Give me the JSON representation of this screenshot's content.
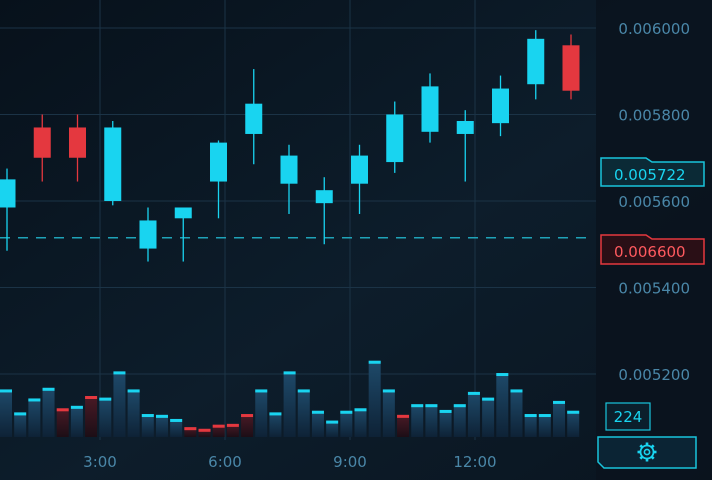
{
  "colors": {
    "background": "#0b1622",
    "panel": "#0a121c",
    "grid": "#1b3346",
    "bull": "#19d4f0",
    "bear": "#e4383f",
    "vol_bull": "#1b3a55",
    "vol_bull_cap": "#19d4f0",
    "vol_bear": "#3a1520",
    "vol_bear_cap": "#e4383f",
    "axis_text": "#4a87a8",
    "dashed_line": "#1fa3b8",
    "current_tag_border": "#19c4dc",
    "current_tag_text": "#19d4f0",
    "alert_tag_border": "#e4383f",
    "alert_tag_text": "#ff5a5f"
  },
  "price_axis": {
    "labels": [
      "0.006000",
      "0.005800",
      "0.005600",
      "0.005400",
      "0.005200"
    ],
    "values": [
      0.006,
      0.0058,
      0.0056,
      0.0054,
      0.0052
    ]
  },
  "time_axis": {
    "labels": [
      "3:00",
      "6:00",
      "9:00",
      "12:00"
    ],
    "values": [
      3,
      6,
      9,
      12
    ]
  },
  "current_price": {
    "label": "0.005722"
  },
  "alert_price": {
    "label": "0.006600"
  },
  "volume_badge": {
    "label": "224"
  },
  "settings_button": {
    "icon": "gear-icon"
  },
  "chart_data": {
    "type": "candlestick",
    "ylim": [
      0.00505,
      0.00607
    ],
    "xlim": [
      0.15,
      14.45
    ],
    "dashed_level": 0.005515,
    "candles": [
      {
        "t": 0.15,
        "open": 0.005585,
        "close": 0.00565,
        "high": 0.005675,
        "low": 0.005485
      },
      {
        "t": 1.0,
        "open": 0.00577,
        "close": 0.0057,
        "high": 0.0058,
        "low": 0.005645
      },
      {
        "t": 1.85,
        "open": 0.00577,
        "close": 0.0057,
        "high": 0.0058,
        "low": 0.005645
      },
      {
        "t": 2.7,
        "open": 0.0056,
        "close": 0.00577,
        "high": 0.005785,
        "low": 0.00559
      },
      {
        "t": 3.55,
        "open": 0.00549,
        "close": 0.005555,
        "high": 0.005585,
        "low": 0.00546
      },
      {
        "t": 4.4,
        "open": 0.00556,
        "close": 0.005585,
        "high": 0.005585,
        "low": 0.00546
      },
      {
        "t": 5.25,
        "open": 0.005645,
        "close": 0.005735,
        "high": 0.00574,
        "low": 0.00556
      },
      {
        "t": 6.1,
        "open": 0.005755,
        "close": 0.005825,
        "high": 0.005905,
        "low": 0.005685
      },
      {
        "t": 6.95,
        "open": 0.00564,
        "close": 0.005705,
        "high": 0.00573,
        "low": 0.00557
      },
      {
        "t": 7.8,
        "open": 0.005595,
        "close": 0.005625,
        "high": 0.005655,
        "low": 0.0055
      },
      {
        "t": 8.65,
        "open": 0.00564,
        "close": 0.005705,
        "high": 0.00573,
        "low": 0.00557
      },
      {
        "t": 9.5,
        "open": 0.00569,
        "close": 0.0058,
        "high": 0.00583,
        "low": 0.005665
      },
      {
        "t": 10.35,
        "open": 0.00576,
        "close": 0.005865,
        "high": 0.005895,
        "low": 0.005735
      },
      {
        "t": 11.2,
        "open": 0.005755,
        "close": 0.005785,
        "high": 0.00581,
        "low": 0.005645
      },
      {
        "t": 12.05,
        "open": 0.00578,
        "close": 0.00586,
        "high": 0.00589,
        "low": 0.00575
      },
      {
        "t": 12.9,
        "open": 0.00587,
        "close": 0.005975,
        "high": 0.005995,
        "low": 0.005835
      },
      {
        "t": 13.75,
        "open": 0.00596,
        "close": 0.005855,
        "high": 0.005985,
        "low": 0.005835
      }
    ],
    "volume": {
      "ylim": [
        0,
        100
      ],
      "bars": [
        {
          "t": 0.15,
          "v": 58,
          "dir": "bull"
        },
        {
          "t": 0.5,
          "v": 30,
          "dir": "bull"
        },
        {
          "t": 0.85,
          "v": 47,
          "dir": "bull"
        },
        {
          "t": 1.15,
          "v": 60,
          "dir": "bull"
        },
        {
          "t": 1.5,
          "v": 35,
          "dir": "bear"
        },
        {
          "t": 1.85,
          "v": 38,
          "dir": "bull"
        },
        {
          "t": 2.15,
          "v": 50,
          "dir": "bear"
        },
        {
          "t": 2.5,
          "v": 48,
          "dir": "bull"
        },
        {
          "t": 2.85,
          "v": 80,
          "dir": "bull"
        },
        {
          "t": 3.15,
          "v": 58,
          "dir": "bull"
        },
        {
          "t": 3.5,
          "v": 28,
          "dir": "bull"
        },
        {
          "t": 3.85,
          "v": 27,
          "dir": "bull"
        },
        {
          "t": 4.15,
          "v": 22,
          "dir": "bull"
        },
        {
          "t": 4.5,
          "v": 12,
          "dir": "bear"
        },
        {
          "t": 4.85,
          "v": 10,
          "dir": "bear"
        },
        {
          "t": 5.15,
          "v": 15,
          "dir": "bear"
        },
        {
          "t": 5.5,
          "v": 16,
          "dir": "bear"
        },
        {
          "t": 5.85,
          "v": 28,
          "dir": "bear"
        },
        {
          "t": 6.15,
          "v": 58,
          "dir": "bull"
        },
        {
          "t": 6.5,
          "v": 30,
          "dir": "bull"
        },
        {
          "t": 6.85,
          "v": 80,
          "dir": "bull"
        },
        {
          "t": 7.15,
          "v": 58,
          "dir": "bull"
        },
        {
          "t": 7.5,
          "v": 32,
          "dir": "bull"
        },
        {
          "t": 7.85,
          "v": 20,
          "dir": "bull"
        },
        {
          "t": 8.15,
          "v": 32,
          "dir": "bull"
        },
        {
          "t": 8.5,
          "v": 35,
          "dir": "bull"
        },
        {
          "t": 8.85,
          "v": 93,
          "dir": "bull"
        },
        {
          "t": 9.15,
          "v": 58,
          "dir": "bull"
        },
        {
          "t": 9.5,
          "v": 27,
          "dir": "bear"
        },
        {
          "t": 9.85,
          "v": 40,
          "dir": "bull"
        },
        {
          "t": 10.15,
          "v": 40,
          "dir": "bull"
        },
        {
          "t": 10.5,
          "v": 33,
          "dir": "bull"
        },
        {
          "t": 10.85,
          "v": 40,
          "dir": "bull"
        },
        {
          "t": 11.15,
          "v": 55,
          "dir": "bull"
        },
        {
          "t": 11.5,
          "v": 48,
          "dir": "bull"
        },
        {
          "t": 11.85,
          "v": 78,
          "dir": "bull"
        },
        {
          "t": 12.15,
          "v": 58,
          "dir": "bull"
        },
        {
          "t": 12.5,
          "v": 28,
          "dir": "bull"
        },
        {
          "t": 12.85,
          "v": 28,
          "dir": "bull"
        },
        {
          "t": 13.15,
          "v": 44,
          "dir": "bull"
        },
        {
          "t": 13.5,
          "v": 32,
          "dir": "bull"
        }
      ]
    }
  }
}
